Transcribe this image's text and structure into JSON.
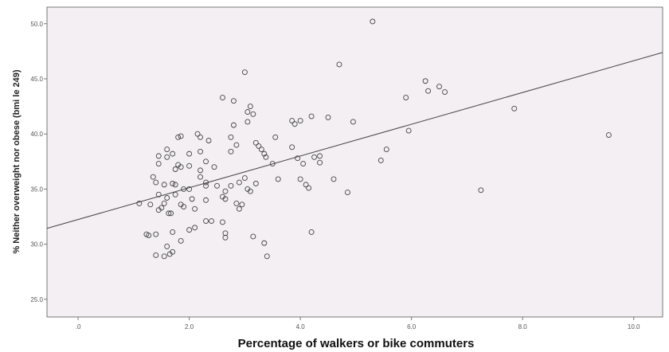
{
  "chart_data": {
    "type": "scatter",
    "title": "",
    "xlabel": "Percentage of walkers or bike commuters",
    "ylabel": "% Neither overweight nor obese (bmi le 249)",
    "xlim": [
      -0.56,
      10.52
    ],
    "ylim": [
      23.4,
      51.5
    ],
    "xticks": [
      0,
      2,
      4,
      6,
      8,
      10
    ],
    "xtick_labels": [
      ".0",
      "2.0",
      "4.0",
      "6.0",
      "8.0",
      "10.0"
    ],
    "yticks": [
      25,
      30,
      35,
      40,
      45,
      50
    ],
    "ytick_labels": [
      "25.0",
      "30.0",
      "35.0",
      "40.0",
      "45.0",
      "50.0"
    ],
    "grid": false,
    "fit_line": {
      "intercept": 32.24,
      "slope": 1.44
    },
    "colors": {
      "background": "#f3eff3",
      "marker": "#444444",
      "line": "#444444"
    },
    "points": [
      [
        5.3,
        50.2
      ],
      [
        4.7,
        46.3
      ],
      [
        6.25,
        44.8
      ],
      [
        6.3,
        43.9
      ],
      [
        6.5,
        44.3
      ],
      [
        6.6,
        43.8
      ],
      [
        5.9,
        43.3
      ],
      [
        5.95,
        40.3
      ],
      [
        7.85,
        42.3
      ],
      [
        9.55,
        39.9
      ],
      [
        7.25,
        34.9
      ],
      [
        5.55,
        38.6
      ],
      [
        5.45,
        37.6
      ],
      [
        4.95,
        41.1
      ],
      [
        4.5,
        41.5
      ],
      [
        4.2,
        41.6
      ],
      [
        4.0,
        41.2
      ],
      [
        3.85,
        41.2
      ],
      [
        3.9,
        40.9
      ],
      [
        3.85,
        38.8
      ],
      [
        3.95,
        37.8
      ],
      [
        3.55,
        39.7
      ],
      [
        4.25,
        37.9
      ],
      [
        4.35,
        38.0
      ],
      [
        4.35,
        37.4
      ],
      [
        4.05,
        37.3
      ],
      [
        3.5,
        37.3
      ],
      [
        3.6,
        35.9
      ],
      [
        4.0,
        35.9
      ],
      [
        4.1,
        35.4
      ],
      [
        4.15,
        35.1
      ],
      [
        4.6,
        35.9
      ],
      [
        4.85,
        34.7
      ],
      [
        4.2,
        31.1
      ],
      [
        3.15,
        30.7
      ],
      [
        3.35,
        30.1
      ],
      [
        3.4,
        28.9
      ],
      [
        3.0,
        45.6
      ],
      [
        2.6,
        43.3
      ],
      [
        2.8,
        43.0
      ],
      [
        3.1,
        42.5
      ],
      [
        3.15,
        41.8
      ],
      [
        3.05,
        42.0
      ],
      [
        3.05,
        41.1
      ],
      [
        2.8,
        40.8
      ],
      [
        3.2,
        39.2
      ],
      [
        3.25,
        38.9
      ],
      [
        3.3,
        38.6
      ],
      [
        3.35,
        38.2
      ],
      [
        3.38,
        37.9
      ],
      [
        2.75,
        39.7
      ],
      [
        2.85,
        39.0
      ],
      [
        2.75,
        38.4
      ],
      [
        3.0,
        36.0
      ],
      [
        3.2,
        35.5
      ],
      [
        3.05,
        35.0
      ],
      [
        3.1,
        34.8
      ],
      [
        2.9,
        35.6
      ],
      [
        2.75,
        35.3
      ],
      [
        2.95,
        33.6
      ],
      [
        2.9,
        33.2
      ],
      [
        2.85,
        33.7
      ],
      [
        2.6,
        34.3
      ],
      [
        2.65,
        34.8
      ],
      [
        2.65,
        34.1
      ],
      [
        2.5,
        35.3
      ],
      [
        2.45,
        37.0
      ],
      [
        2.3,
        37.5
      ],
      [
        2.2,
        38.4
      ],
      [
        2.15,
        40.0
      ],
      [
        2.2,
        39.7
      ],
      [
        2.35,
        39.4
      ],
      [
        1.8,
        39.7
      ],
      [
        1.85,
        39.8
      ],
      [
        2.0,
        38.2
      ],
      [
        2.0,
        37.1
      ],
      [
        2.2,
        36.1
      ],
      [
        2.2,
        36.7
      ],
      [
        2.3,
        35.6
      ],
      [
        2.3,
        35.3
      ],
      [
        1.8,
        37.2
      ],
      [
        1.75,
        36.8
      ],
      [
        1.85,
        37.0
      ],
      [
        1.6,
        38.6
      ],
      [
        1.6,
        37.9
      ],
      [
        1.45,
        38.0
      ],
      [
        1.45,
        37.3
      ],
      [
        1.7,
        38.2
      ],
      [
        1.35,
        36.1
      ],
      [
        1.55,
        35.4
      ],
      [
        1.7,
        35.5
      ],
      [
        1.75,
        35.4
      ],
      [
        1.9,
        35.0
      ],
      [
        2.0,
        35.0
      ],
      [
        1.75,
        34.5
      ],
      [
        1.45,
        34.5
      ],
      [
        1.4,
        35.6
      ],
      [
        1.6,
        34.2
      ],
      [
        1.85,
        33.6
      ],
      [
        1.55,
        33.7
      ],
      [
        1.5,
        33.3
      ],
      [
        1.1,
        33.7
      ],
      [
        1.3,
        33.6
      ],
      [
        1.45,
        33.1
      ],
      [
        1.63,
        32.8
      ],
      [
        1.67,
        32.8
      ],
      [
        1.9,
        33.4
      ],
      [
        2.1,
        33.2
      ],
      [
        2.05,
        34.1
      ],
      [
        2.3,
        34.0
      ],
      [
        2.3,
        32.1
      ],
      [
        2.4,
        32.1
      ],
      [
        2.1,
        31.5
      ],
      [
        2.0,
        31.3
      ],
      [
        2.6,
        32.0
      ],
      [
        2.65,
        31.0
      ],
      [
        2.65,
        30.6
      ],
      [
        1.7,
        31.1
      ],
      [
        1.85,
        30.3
      ],
      [
        1.23,
        30.9
      ],
      [
        1.27,
        30.8
      ],
      [
        1.4,
        30.9
      ],
      [
        1.6,
        29.8
      ],
      [
        1.4,
        29.0
      ],
      [
        1.55,
        28.9
      ],
      [
        1.65,
        29.1
      ],
      [
        1.7,
        29.3
      ]
    ]
  }
}
